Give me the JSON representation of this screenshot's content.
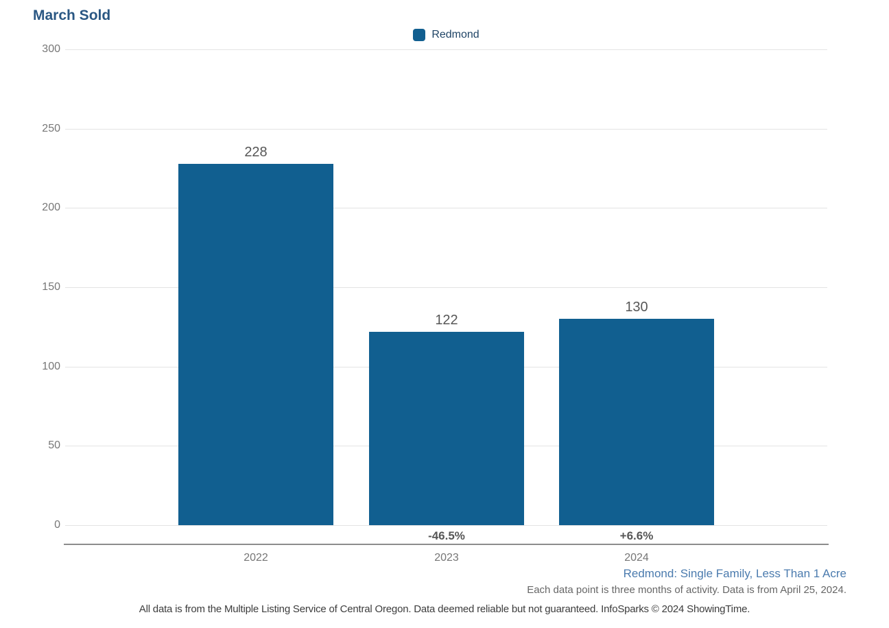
{
  "title": "March Sold",
  "legend": {
    "label": "Redmond",
    "swatch_color": "#115f90"
  },
  "chart_data": {
    "type": "bar",
    "title": "March Sold",
    "categories": [
      "2022",
      "2023",
      "2024"
    ],
    "series": [
      {
        "name": "Redmond",
        "values": [
          228,
          122,
          130
        ]
      }
    ],
    "value_labels": [
      "228",
      "122",
      "130"
    ],
    "pct_change_labels": [
      "",
      "-46.5%",
      "+6.6%"
    ],
    "xlabel": "",
    "ylabel": "",
    "ylim": [
      0,
      300
    ],
    "y_ticks": [
      300,
      250,
      200,
      150,
      100,
      50,
      0
    ],
    "grid": true,
    "legend_position": "top-center",
    "bar_color": "#115f90",
    "gridline_color": "#e3e3e3",
    "axis_line_color": "#8c8c8c",
    "tick_label_color": "#777777",
    "value_label_color": "#565656"
  },
  "footnotes": {
    "segment": "Redmond: Single Family, Less Than 1 Acre",
    "data_note": "Each data point is three months of activity. Data is from April 25, 2024.",
    "disclaimer": "All data is from the Multiple Listing Service of Central Oregon. Data deemed reliable but not guaranteed. InfoSparks © 2024 ShowingTime."
  },
  "colors": {
    "title": "#2a5783",
    "bar": "#115f90",
    "segment_link": "#4b7bae",
    "background": "#ffffff"
  }
}
